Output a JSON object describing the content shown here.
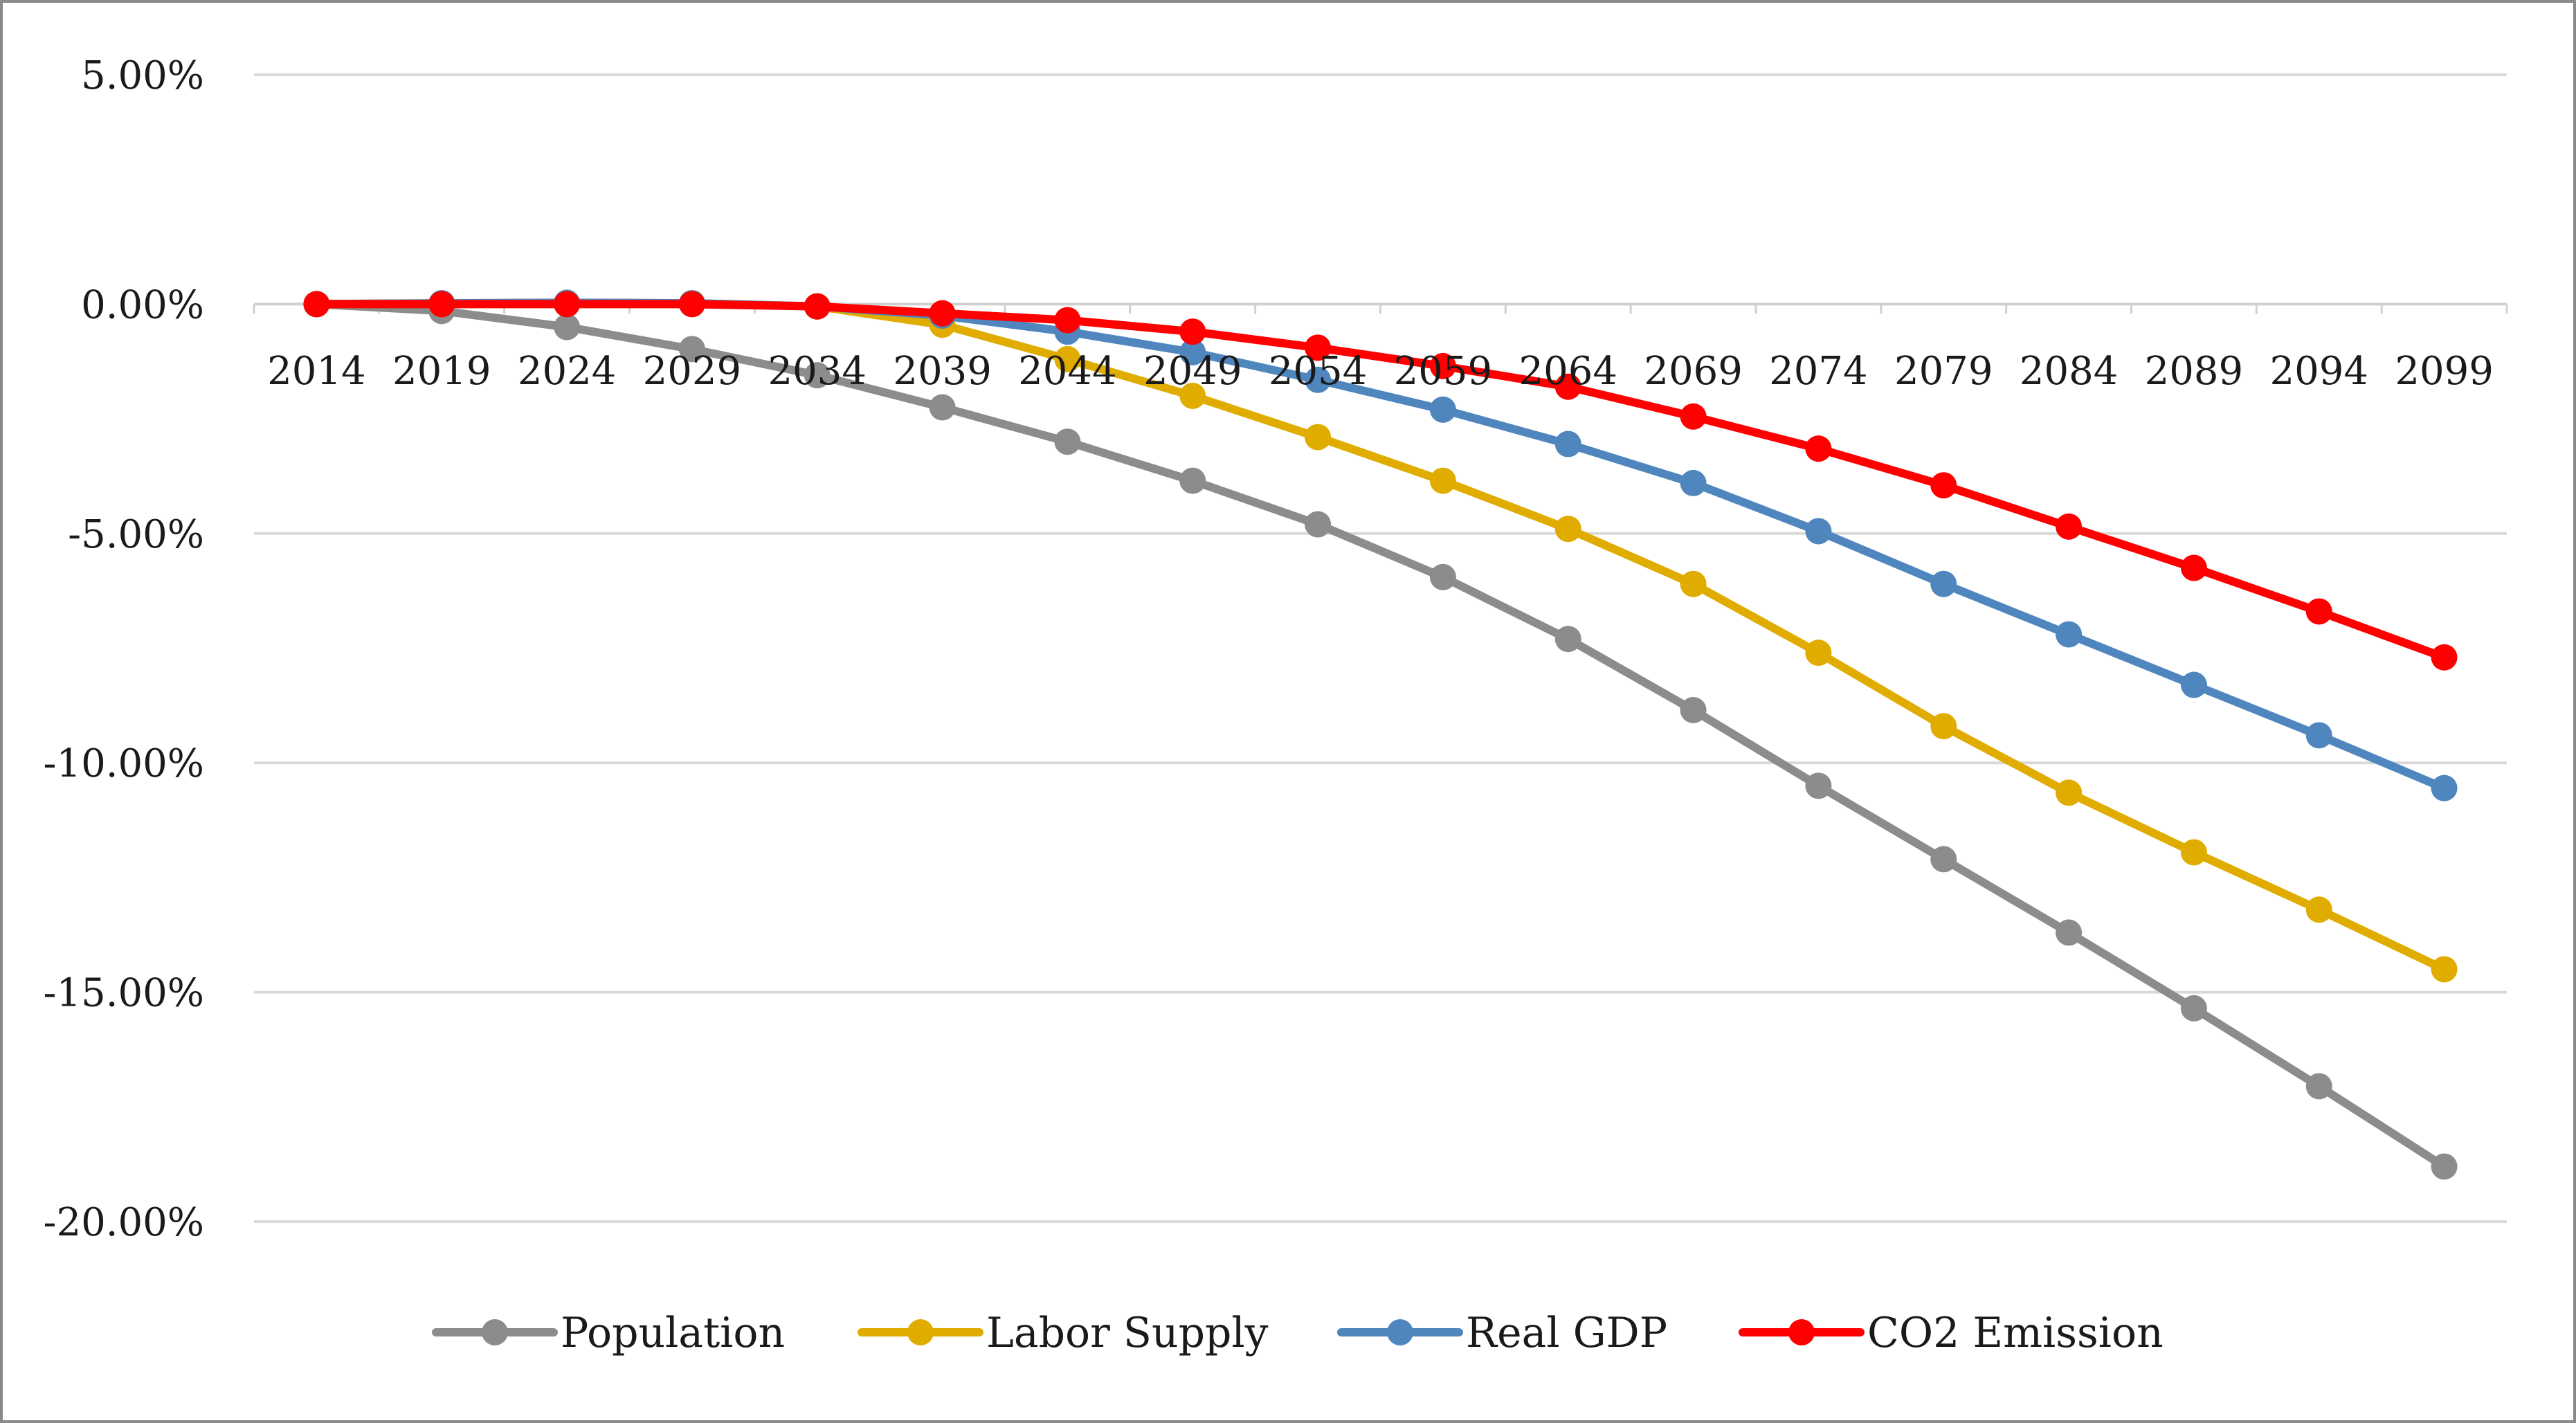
{
  "chart_data": {
    "type": "line",
    "title": "",
    "xlabel": "",
    "ylabel": "",
    "y_format": "percent_2dp",
    "ylim": [
      -20,
      5
    ],
    "yticks": [
      5,
      0,
      -5,
      -10,
      -15,
      -20
    ],
    "ytick_labels": [
      "5.00%",
      "0.00%",
      "-5.00%",
      "-10.00%",
      "-15.00%",
      "-20.00%"
    ],
    "grid": true,
    "legend_position": "bottom",
    "categories": [
      "2014",
      "2019",
      "2024",
      "2029",
      "2034",
      "2039",
      "2044",
      "2049",
      "2054",
      "2059",
      "2064",
      "2069",
      "2074",
      "2079",
      "2084",
      "2089",
      "2094",
      "2099"
    ],
    "series": [
      {
        "name": "Population",
        "color": "#8c8c8c",
        "values": [
          0.0,
          -0.15,
          -0.5,
          -0.98,
          -1.55,
          -2.25,
          -3.0,
          -3.85,
          -4.8,
          -5.95,
          -7.3,
          -8.85,
          -10.5,
          -12.1,
          -13.7,
          -15.35,
          -17.05,
          -18.8
        ]
      },
      {
        "name": "Labor Supply",
        "color": "#e0ac00",
        "values": [
          0.0,
          0.02,
          0.03,
          0.02,
          -0.05,
          -0.45,
          -1.2,
          -2.0,
          -2.9,
          -3.85,
          -4.9,
          -6.1,
          -7.6,
          -9.2,
          -10.65,
          -11.95,
          -13.2,
          -14.5
        ]
      },
      {
        "name": "Real GDP",
        "color": "#4f86be",
        "values": [
          0.0,
          0.02,
          0.03,
          0.02,
          -0.05,
          -0.25,
          -0.6,
          -1.05,
          -1.65,
          -2.3,
          -3.05,
          -3.9,
          -4.95,
          -6.1,
          -7.2,
          -8.3,
          -9.4,
          -10.55
        ]
      },
      {
        "name": "CO2 Emission",
        "color": "#ff0000",
        "values": [
          0.0,
          0.0,
          0.0,
          0.0,
          -0.05,
          -0.2,
          -0.35,
          -0.6,
          -0.95,
          -1.35,
          -1.8,
          -2.45,
          -3.15,
          -3.95,
          -4.85,
          -5.75,
          -6.7,
          -7.7
        ]
      }
    ]
  }
}
